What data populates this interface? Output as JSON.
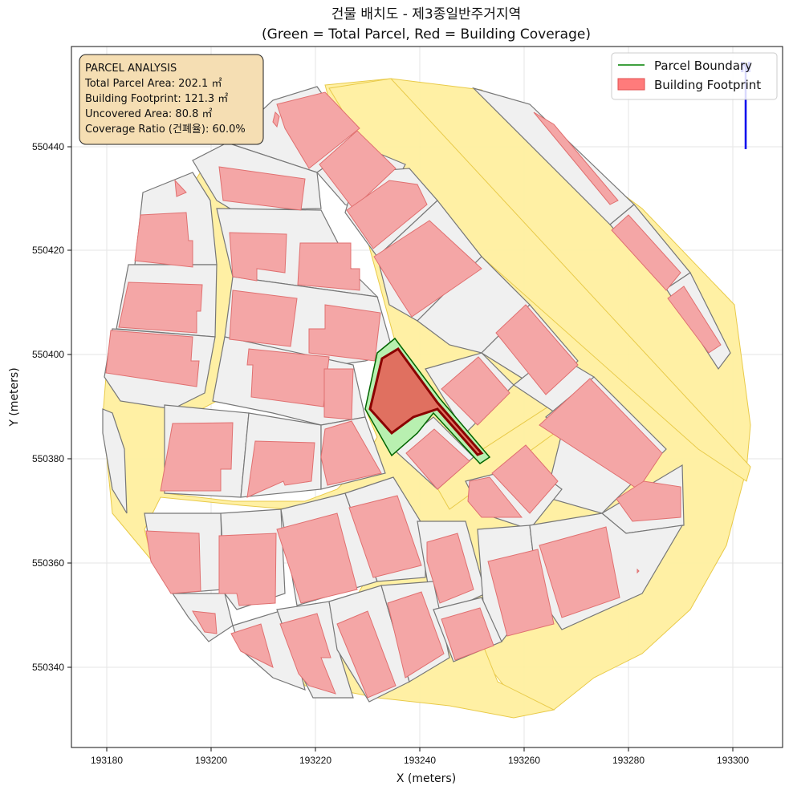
{
  "title": {
    "line1": "건물 배치도 - 제3종일반주거지역",
    "line2": "(Green = Total Parcel, Red = Building Coverage)"
  },
  "axes": {
    "xlabel": "X (meters)",
    "ylabel": "Y (meters)",
    "xlim": [
      193173.5,
      193309.5
    ],
    "ylim": [
      550325,
      550460
    ],
    "xticks": [
      193180,
      193200,
      193220,
      193240,
      193260,
      193280,
      193300
    ],
    "yticks": [
      550340,
      550360,
      550380,
      550400,
      550420,
      550440
    ],
    "grid": true
  },
  "info_box": {
    "heading": "PARCEL ANALYSIS",
    "total_area": "Total Parcel Area: 202.1 ㎡",
    "footprint": "Building Footprint: 121.3 ㎡",
    "uncovered": "Uncovered Area: 80.8 ㎡",
    "coverage": "Coverage Ratio (건폐율): 60.0%"
  },
  "legend": {
    "placement": "top-right",
    "items": [
      {
        "label": "Parcel Boundary",
        "kind": "line",
        "color": "#008000"
      },
      {
        "label": "Building Footprint",
        "kind": "patch",
        "color": "#ff7b7b"
      }
    ]
  },
  "north_arrow": {
    "label": "N",
    "color": "#0000ee"
  },
  "colors": {
    "road_fill": "#fff0a0",
    "road_edge": "#e8c840",
    "parcel_fill": "#f0f0f0",
    "parcel_edge": "#777777",
    "building_fill": "#f4a6a6",
    "building_edge": "#e07070",
    "target_parcel_fill": "#b8f0b0",
    "target_parcel_edge": "#006400",
    "target_building_fill": "#e07060",
    "target_building_edge": "#8b0000"
  },
  "chart_data": {
    "type": "map",
    "target_parcel": {
      "area_m2": 202.1,
      "footprint_m2": 121.3,
      "uncovered_m2": 80.8,
      "coverage_ratio_pct": 60.0
    }
  }
}
